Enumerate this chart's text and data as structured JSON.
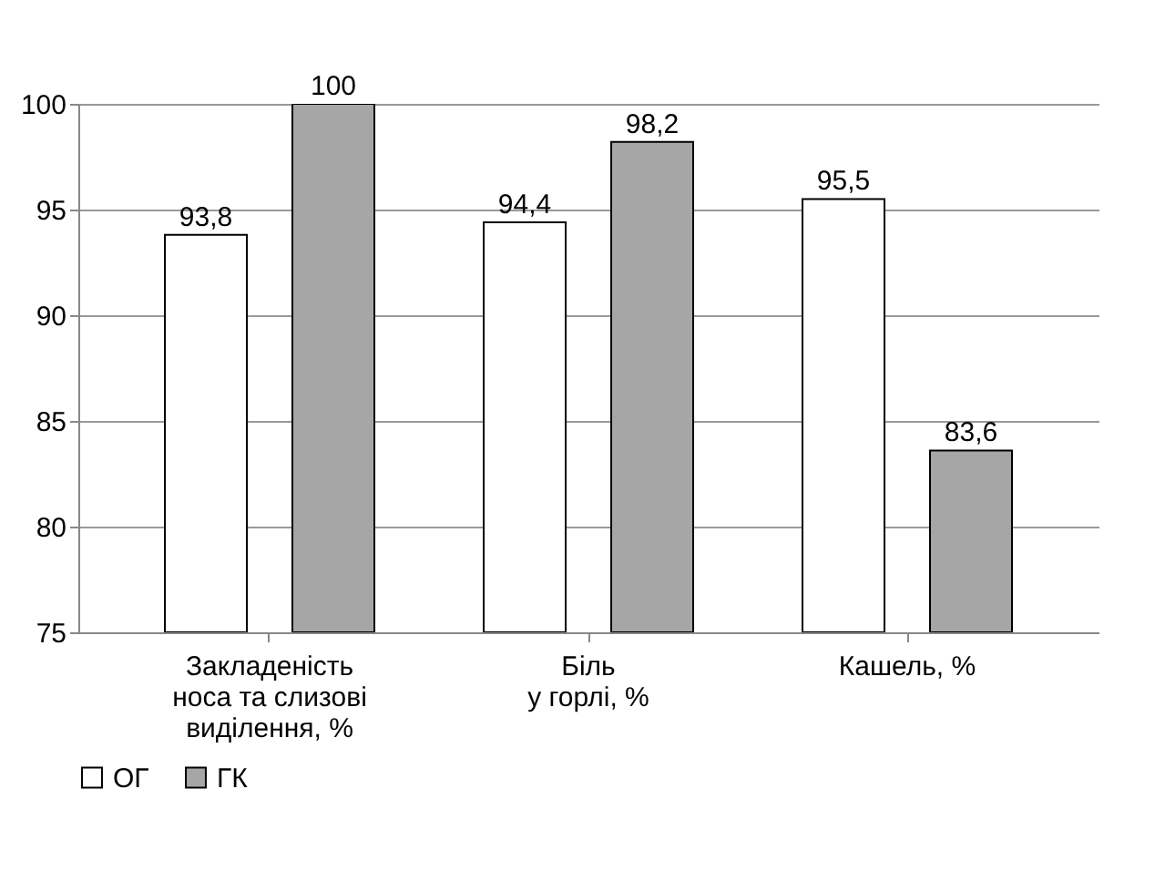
{
  "chart_data": {
    "type": "bar",
    "categories": [
      "Закладеність\nноса та слизові\nвиділення, %",
      "Біль\nу горлі, %",
      "Кашель, %"
    ],
    "series": [
      {
        "name": "ОГ",
        "color": "#ffffff",
        "values": [
          93.8,
          94.4,
          95.5
        ],
        "value_labels": [
          "93,8",
          "94,4",
          "95,5"
        ]
      },
      {
        "name": "ГК",
        "color": "#a6a6a6",
        "values": [
          100,
          98.2,
          83.6
        ],
        "value_labels": [
          "100",
          "98,2",
          "83,6"
        ]
      }
    ],
    "ylim": [
      75,
      100
    ],
    "yticks": [
      75,
      80,
      85,
      90,
      95,
      100
    ],
    "grid": "y",
    "legend": "bottom left"
  }
}
